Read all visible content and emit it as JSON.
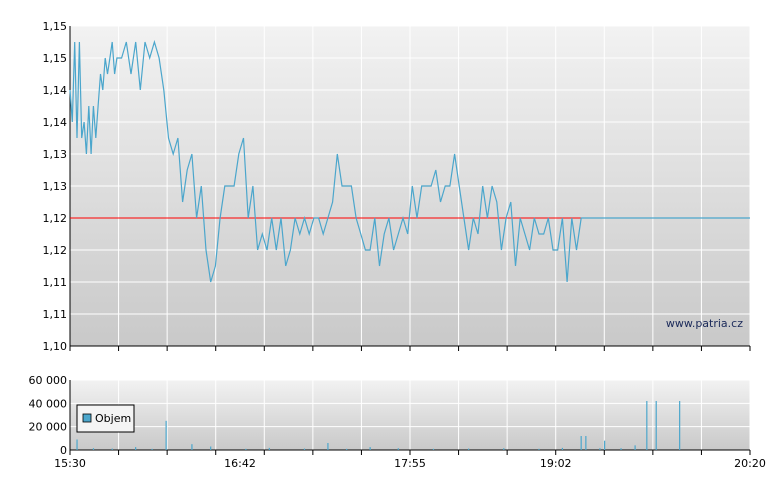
{
  "chart_data": [
    {
      "type": "line",
      "y_ticks": [
        "1,15",
        "1,15",
        "1,14",
        "1,14",
        "1,13",
        "1,13",
        "1,12",
        "1,12",
        "1,11",
        "1,11",
        "1,10"
      ],
      "ylim": [
        1.1,
        1.15
      ],
      "watermark": "www.patria.cz",
      "reference_line": {
        "value": 1.12,
        "color": "#ff0000"
      },
      "colors": {
        "line": "#4ba6cc",
        "background_top": "#f2f2f2",
        "background_bottom": "#c9c9c9",
        "grid": "#ffffff"
      },
      "grid": true,
      "series": [
        {
          "x_minutes": [
            0,
            1,
            2,
            3,
            4,
            5,
            6,
            7,
            8,
            9,
            10,
            11,
            12,
            13,
            14,
            15,
            16,
            17,
            18,
            19,
            20,
            22,
            24,
            26,
            28,
            30,
            32,
            34,
            36,
            38,
            40,
            42,
            44,
            46,
            48,
            50,
            52,
            54,
            56,
            58,
            60,
            62,
            64,
            66,
            68,
            70,
            72,
            74,
            76,
            78,
            80,
            82,
            84,
            86,
            88,
            90,
            92,
            94,
            96,
            98,
            100,
            102,
            104,
            106,
            108,
            110,
            112,
            114,
            116,
            118,
            120,
            122,
            124,
            126,
            128,
            130,
            132,
            134,
            136,
            138,
            140,
            142,
            144,
            146,
            148,
            150,
            152,
            154,
            156,
            158,
            160,
            162,
            164,
            166,
            168,
            170,
            172,
            174,
            176,
            178,
            180,
            182,
            184,
            186,
            188,
            190,
            192,
            194,
            196,
            198,
            200,
            202,
            204,
            206,
            208,
            210,
            212,
            214,
            216,
            218,
            220,
            224,
            228,
            232,
            236,
            240,
            244,
            248,
            252,
            256,
            260,
            264,
            268,
            272,
            276,
            280,
            284,
            288,
            292,
            296,
            300,
            310
          ],
          "y": [
            1.14,
            1.135,
            1.1475,
            1.1325,
            1.1475,
            1.1325,
            1.135,
            1.13,
            1.1375,
            1.13,
            1.1375,
            1.1325,
            1.1375,
            1.1425,
            1.14,
            1.145,
            1.1425,
            1.145,
            1.1475,
            1.1425,
            1.145,
            1.145,
            1.1475,
            1.1425,
            1.1475,
            1.14,
            1.1475,
            1.145,
            1.1475,
            1.145,
            1.14,
            1.1325,
            1.13,
            1.1325,
            1.1225,
            1.1275,
            1.13,
            1.12,
            1.125,
            1.115,
            1.11,
            1.1125,
            1.12,
            1.125,
            1.125,
            1.125,
            1.13,
            1.1325,
            1.12,
            1.125,
            1.115,
            1.1175,
            1.115,
            1.12,
            1.115,
            1.12,
            1.1125,
            1.115,
            1.12,
            1.1175,
            1.12,
            1.1175,
            1.12,
            1.12,
            1.1175,
            1.12,
            1.1225,
            1.13,
            1.125,
            1.125,
            1.125,
            1.12,
            1.1175,
            1.115,
            1.115,
            1.12,
            1.1125,
            1.1175,
            1.12,
            1.115,
            1.1175,
            1.12,
            1.1175,
            1.125,
            1.12,
            1.125,
            1.125,
            1.125,
            1.1275,
            1.1225,
            1.125,
            1.125,
            1.13,
            1.125,
            1.12,
            1.115,
            1.12,
            1.1175,
            1.125,
            1.12,
            1.125,
            1.1225,
            1.115,
            1.12,
            1.1225,
            1.1125,
            1.12,
            1.1175,
            1.115,
            1.12,
            1.1175,
            1.1175,
            1.12,
            1.115,
            1.115,
            1.12,
            1.11,
            1.12,
            1.115,
            1.12,
            1.12,
            1.12,
            1.12,
            1.12,
            1.12,
            1.12,
            1.12,
            1.12,
            1.12,
            1.12,
            1.12,
            1.12,
            1.12,
            1.12,
            1.12,
            1.12,
            1.12,
            1.12,
            1.12,
            1.12,
            1.12,
            1.12
          ]
        }
      ]
    },
    {
      "type": "bar",
      "y_ticks": [
        "60 000",
        "40 000",
        "20 000",
        "0"
      ],
      "ylim": [
        0,
        60000
      ],
      "x_ticks": [
        "15:30",
        "16:42",
        "17:55",
        "19:02",
        "20:20"
      ],
      "legend": {
        "label": "Objem",
        "placement": "top-left"
      },
      "colors": {
        "bar": "#4ba6cc",
        "background_top": "#f2f2f2",
        "background_bottom": "#c9c9c9",
        "grid": "#ffffff"
      },
      "grid": true,
      "series": [
        {
          "name": "Objem",
          "x_minutes": [
            3,
            10,
            18,
            28,
            35,
            41,
            52,
            60,
            75,
            85,
            100,
            110,
            118,
            128,
            140,
            155,
            170,
            185,
            200,
            210,
            218,
            220,
            226,
            228,
            235,
            241,
            246,
            250,
            260
          ],
          "values": [
            9000,
            1500,
            1200,
            2500,
            1000,
            25000,
            5000,
            3000,
            1000,
            1800,
            1200,
            6000,
            1000,
            2500,
            1500,
            1000,
            1200,
            1500,
            1000,
            1800,
            12000,
            12000,
            1500,
            8000,
            1500,
            4000,
            42000,
            42000,
            42000
          ]
        }
      ]
    }
  ]
}
